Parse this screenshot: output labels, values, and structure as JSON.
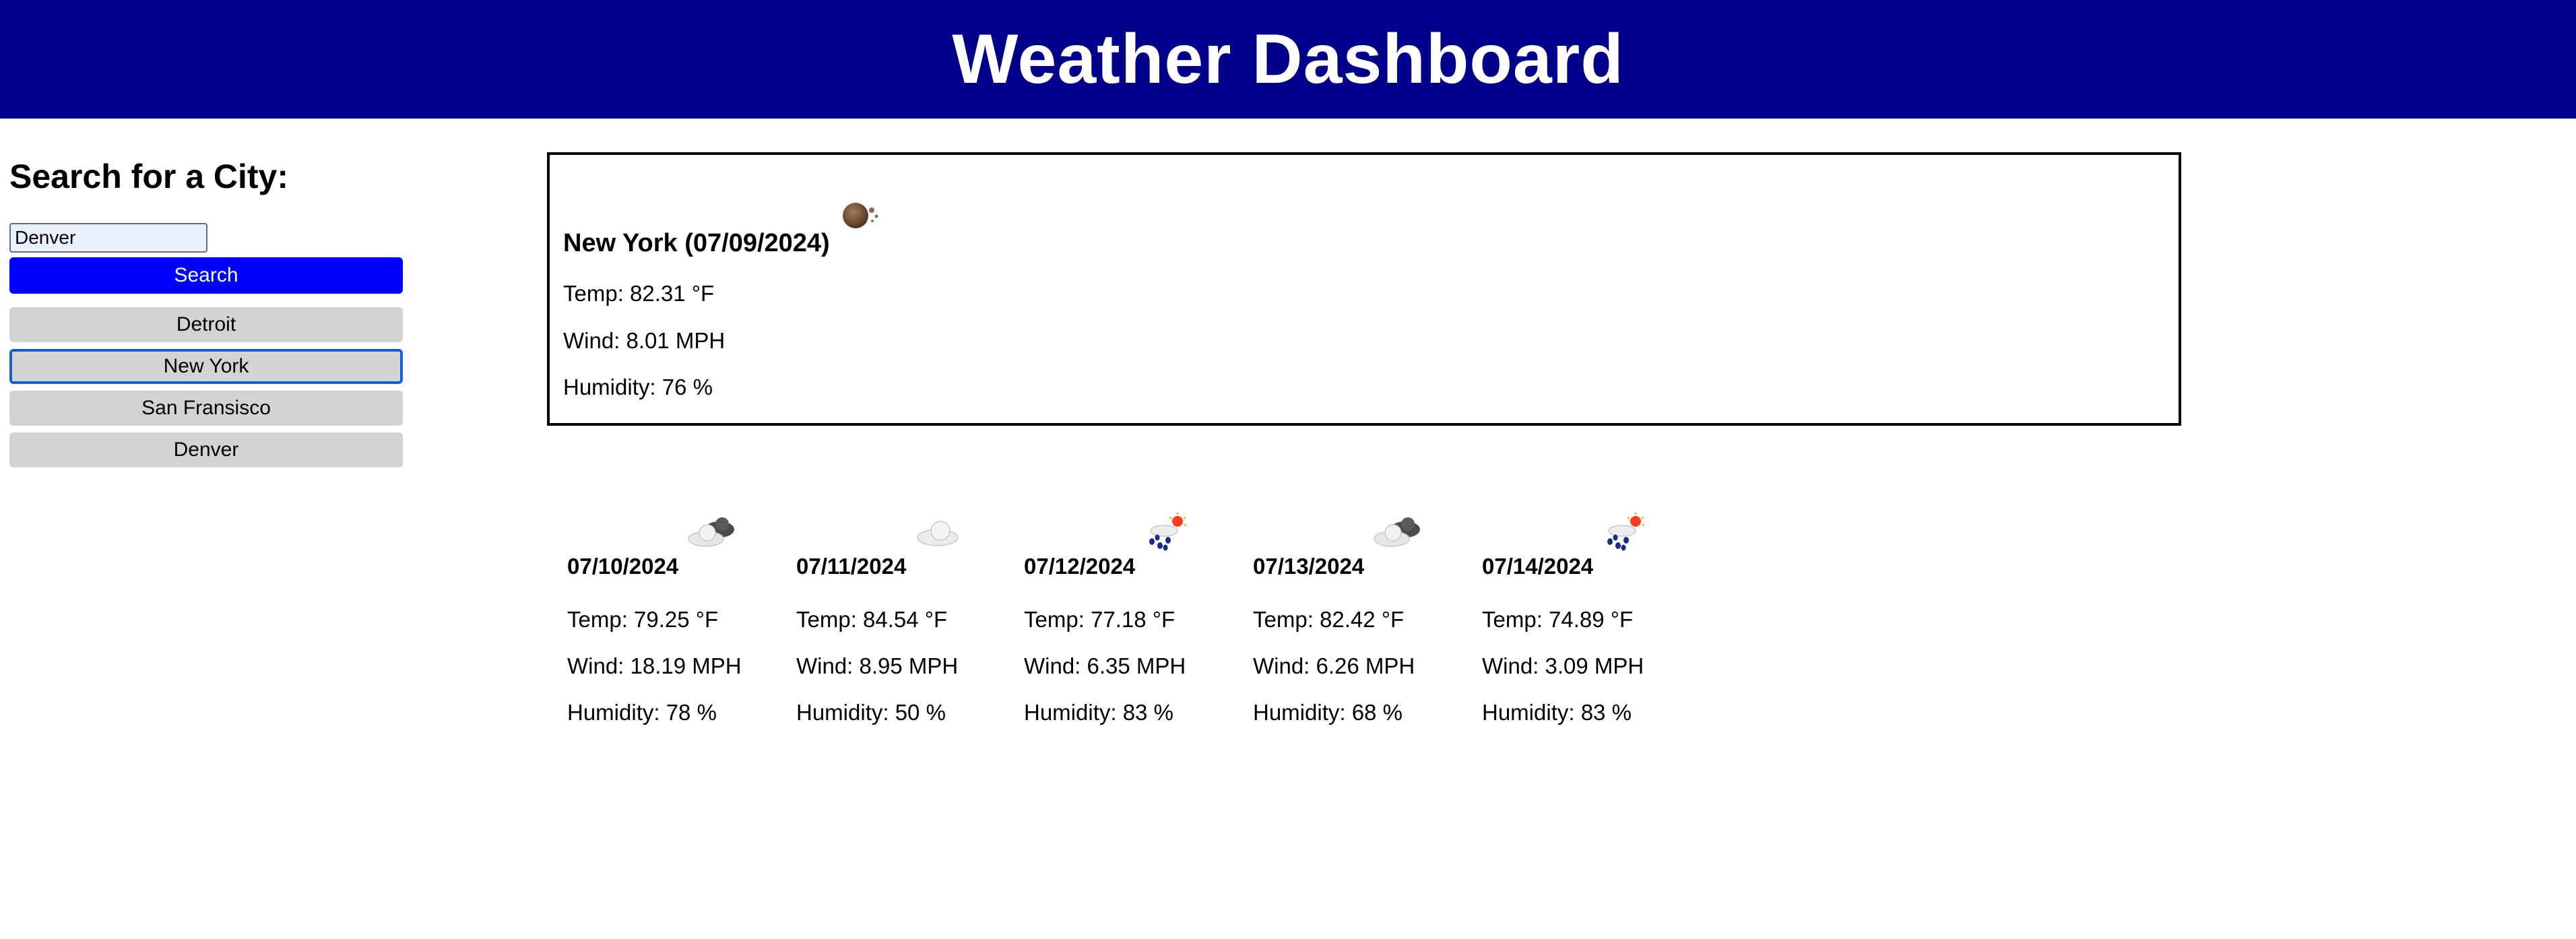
{
  "header": {
    "title": "Weather Dashboard",
    "background_color": "#00008b"
  },
  "sidebar": {
    "heading": "Search for a City:",
    "search_value": "Denver",
    "search_button_label": "Search",
    "search_button_color": "#0000ff",
    "history": [
      {
        "label": "Detroit",
        "selected": false
      },
      {
        "label": "New York",
        "selected": true
      },
      {
        "label": "San Fransisco",
        "selected": false
      },
      {
        "label": "Denver",
        "selected": false
      }
    ]
  },
  "current": {
    "title": "New York (07/09/2024)",
    "icon": "moon-haze-icon",
    "temp": "Temp: 82.31 °F",
    "wind": "Wind: 8.01 MPH",
    "humidity": "Humidity: 76 %"
  },
  "forecast": [
    {
      "date": "07/10/2024",
      "icon": "broken-clouds-icon",
      "temp": "Temp: 79.25 °F",
      "wind": "Wind: 18.19 MPH",
      "humidity": "Humidity: 78 %"
    },
    {
      "date": "07/11/2024",
      "icon": "cloud-icon",
      "temp": "Temp: 84.54 °F",
      "wind": "Wind: 8.95 MPH",
      "humidity": "Humidity: 50 %"
    },
    {
      "date": "07/12/2024",
      "icon": "rain-sun-icon",
      "temp": "Temp: 77.18 °F",
      "wind": "Wind: 6.35 MPH",
      "humidity": "Humidity: 83 %"
    },
    {
      "date": "07/13/2024",
      "icon": "broken-clouds-icon",
      "temp": "Temp: 82.42 °F",
      "wind": "Wind: 6.26 MPH",
      "humidity": "Humidity: 68 %"
    },
    {
      "date": "07/14/2024",
      "icon": "rain-sun-icon",
      "temp": "Temp: 74.89 °F",
      "wind": "Wind: 3.09 MPH",
      "humidity": "Humidity: 83 %"
    }
  ]
}
